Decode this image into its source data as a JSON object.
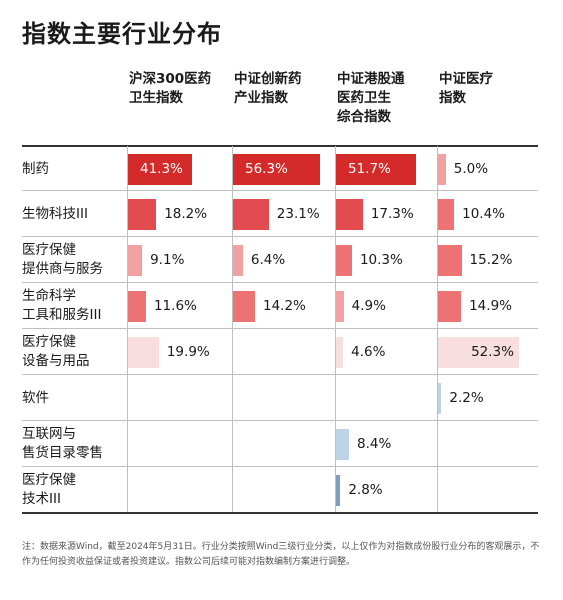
{
  "title": "指数主要行业分布",
  "note": "注：数据来源Wind，截至2024年5月31日。行业分类按照Wind三级行业分类，以上仅作为对指数成份股行业分布的客观展示，不作为任何投资收益保证或者投资建议。指数公司后续可能对指数编制方案进行调整。",
  "colors": {
    "c1": "#d42a2a",
    "c2": "#e24b50",
    "c3": "#ec7274",
    "c4": "#f2a1a1",
    "c5": "#f8dede",
    "c6": "#bcd4e6",
    "c7": "#7c9fbf"
  },
  "chart_data": {
    "type": "table",
    "columns": [
      [
        "沪深300医药",
        "卫生指数"
      ],
      [
        "中证创新药",
        "产业指数"
      ],
      [
        "中证港股通",
        "医药卫生",
        "综合指数"
      ],
      [
        "中证医疗",
        "指数"
      ]
    ],
    "rows": [
      {
        "label": [
          "制药"
        ],
        "values": [
          41.3,
          56.3,
          51.7,
          5.0
        ],
        "labels": [
          "41.3%",
          "56.3%",
          "51.7%",
          "5.0%"
        ]
      },
      {
        "label": [
          "生物科技III"
        ],
        "values": [
          18.2,
          23.1,
          17.3,
          10.4
        ],
        "labels": [
          "18.2%",
          "23.1%",
          "17.3%",
          "10.4%"
        ]
      },
      {
        "label": [
          "医疗保健",
          "提供商与服务"
        ],
        "values": [
          9.1,
          6.4,
          10.3,
          15.2
        ],
        "labels": [
          "9.1%",
          "6.4%",
          "10.3%",
          "15.2%"
        ]
      },
      {
        "label": [
          "生命科学",
          "工具和服务III"
        ],
        "values": [
          11.6,
          14.2,
          4.9,
          14.9
        ],
        "labels": [
          "11.6%",
          "14.2%",
          "4.9%",
          "14.9%"
        ]
      },
      {
        "label": [
          "医疗保健",
          "设备与用品"
        ],
        "values": [
          19.9,
          null,
          4.6,
          52.3
        ],
        "labels": [
          "19.9%",
          "",
          "4.6%",
          "52.3%"
        ]
      },
      {
        "label": [
          "软件"
        ],
        "values": [
          null,
          null,
          null,
          2.2
        ],
        "labels": [
          "",
          "",
          "",
          "2.2%"
        ]
      },
      {
        "label": [
          "互联网与",
          "售货目录零售"
        ],
        "values": [
          null,
          null,
          8.4,
          null
        ],
        "labels": [
          "",
          "",
          "8.4%",
          ""
        ]
      },
      {
        "label": [
          "医疗保健",
          "技术III"
        ],
        "values": [
          null,
          null,
          2.8,
          null
        ],
        "labels": [
          "",
          "",
          "2.8%",
          ""
        ]
      }
    ]
  }
}
